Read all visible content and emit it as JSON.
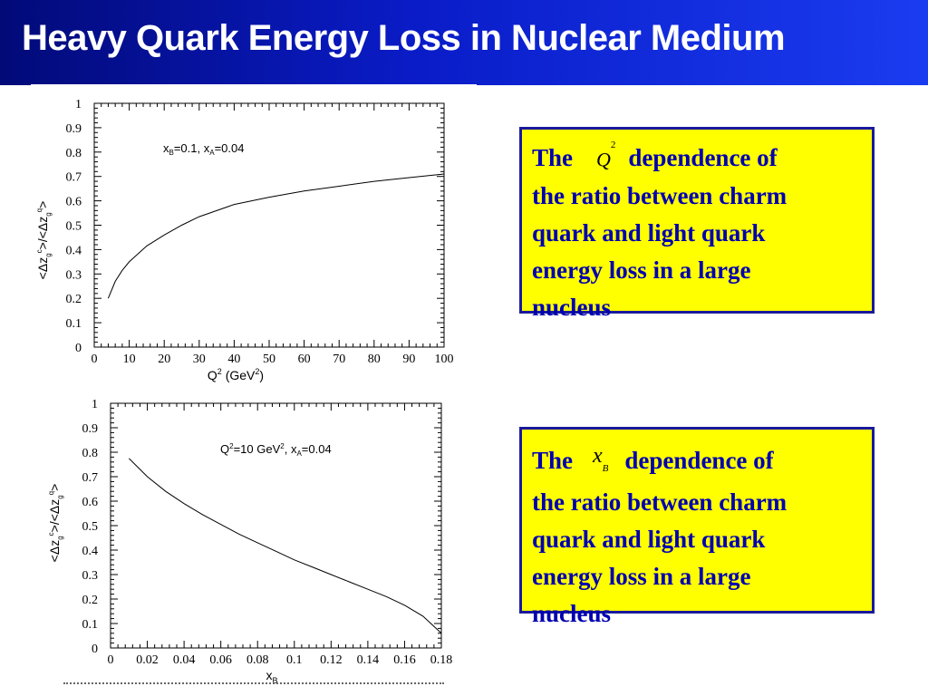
{
  "slide": {
    "title": "Heavy Quark Energy Loss in Nuclear Medium"
  },
  "notes": [
    {
      "prefix": "The",
      "symbol": "Q",
      "symbol_sup": "2",
      "symbol_sub": "",
      "rest": "dependence of",
      "lines": [
        "the ratio between charm",
        "quark and light quark",
        "energy loss in a large",
        "nucleus"
      ]
    },
    {
      "prefix": "The",
      "symbol": "x",
      "symbol_sup": "",
      "symbol_sub": "B",
      "rest": "dependence of",
      "lines": [
        "the ratio between charm",
        "quark and light quark",
        "energy loss in a large",
        "nucleus"
      ]
    }
  ],
  "colors": {
    "title_bar": "#0a1cc8",
    "note_fill": "#ffff00",
    "note_border": "#1a1a9c",
    "note_text": "#0000b0"
  },
  "chart_data": [
    {
      "type": "line",
      "title": "",
      "annotation": "x_B=0.1, x_A=0.04",
      "xlabel": "Q² (GeV²)",
      "ylabel": "<Δz_g^c>/<Δz_g^q>",
      "xlim": [
        0,
        100
      ],
      "ylim": [
        0,
        1
      ],
      "xticks": [
        "0",
        "10",
        "20",
        "30",
        "40",
        "50",
        "60",
        "70",
        "80",
        "90",
        "100"
      ],
      "yticks": [
        "0",
        "0.1",
        "0.2",
        "0.3",
        "0.4",
        "0.5",
        "0.6",
        "0.7",
        "0.8",
        "0.9",
        "1"
      ],
      "grid": false,
      "series": [
        {
          "x": [
            4,
            6,
            8,
            10,
            15,
            20,
            25,
            30,
            35,
            40,
            50,
            60,
            70,
            80,
            90,
            100
          ],
          "values": [
            0.2,
            0.27,
            0.315,
            0.35,
            0.415,
            0.46,
            0.5,
            0.535,
            0.56,
            0.585,
            0.615,
            0.64,
            0.66,
            0.68,
            0.695,
            0.71
          ]
        }
      ]
    },
    {
      "type": "line",
      "title": "",
      "annotation": "Q²=10 GeV², x_A=0.04",
      "xlabel": "x_B",
      "ylabel": "<Δz_g^c>/<Δz_g^q>",
      "xlim": [
        0,
        0.18
      ],
      "ylim": [
        0,
        1
      ],
      "xticks": [
        "0",
        "0.02",
        "0.04",
        "0.06",
        "0.08",
        "0.1",
        "0.12",
        "0.14",
        "0.16",
        "0.18"
      ],
      "yticks": [
        "0",
        "0.1",
        "0.2",
        "0.3",
        "0.4",
        "0.5",
        "0.6",
        "0.7",
        "0.8",
        "0.9",
        "1"
      ],
      "grid": false,
      "series": [
        {
          "x": [
            0.01,
            0.02,
            0.03,
            0.04,
            0.05,
            0.06,
            0.07,
            0.08,
            0.09,
            0.1,
            0.11,
            0.12,
            0.13,
            0.14,
            0.15,
            0.16,
            0.17,
            0.18
          ],
          "values": [
            0.775,
            0.7,
            0.64,
            0.59,
            0.545,
            0.505,
            0.465,
            0.43,
            0.395,
            0.36,
            0.33,
            0.3,
            0.27,
            0.24,
            0.21,
            0.175,
            0.13,
            0.06
          ]
        }
      ]
    }
  ]
}
